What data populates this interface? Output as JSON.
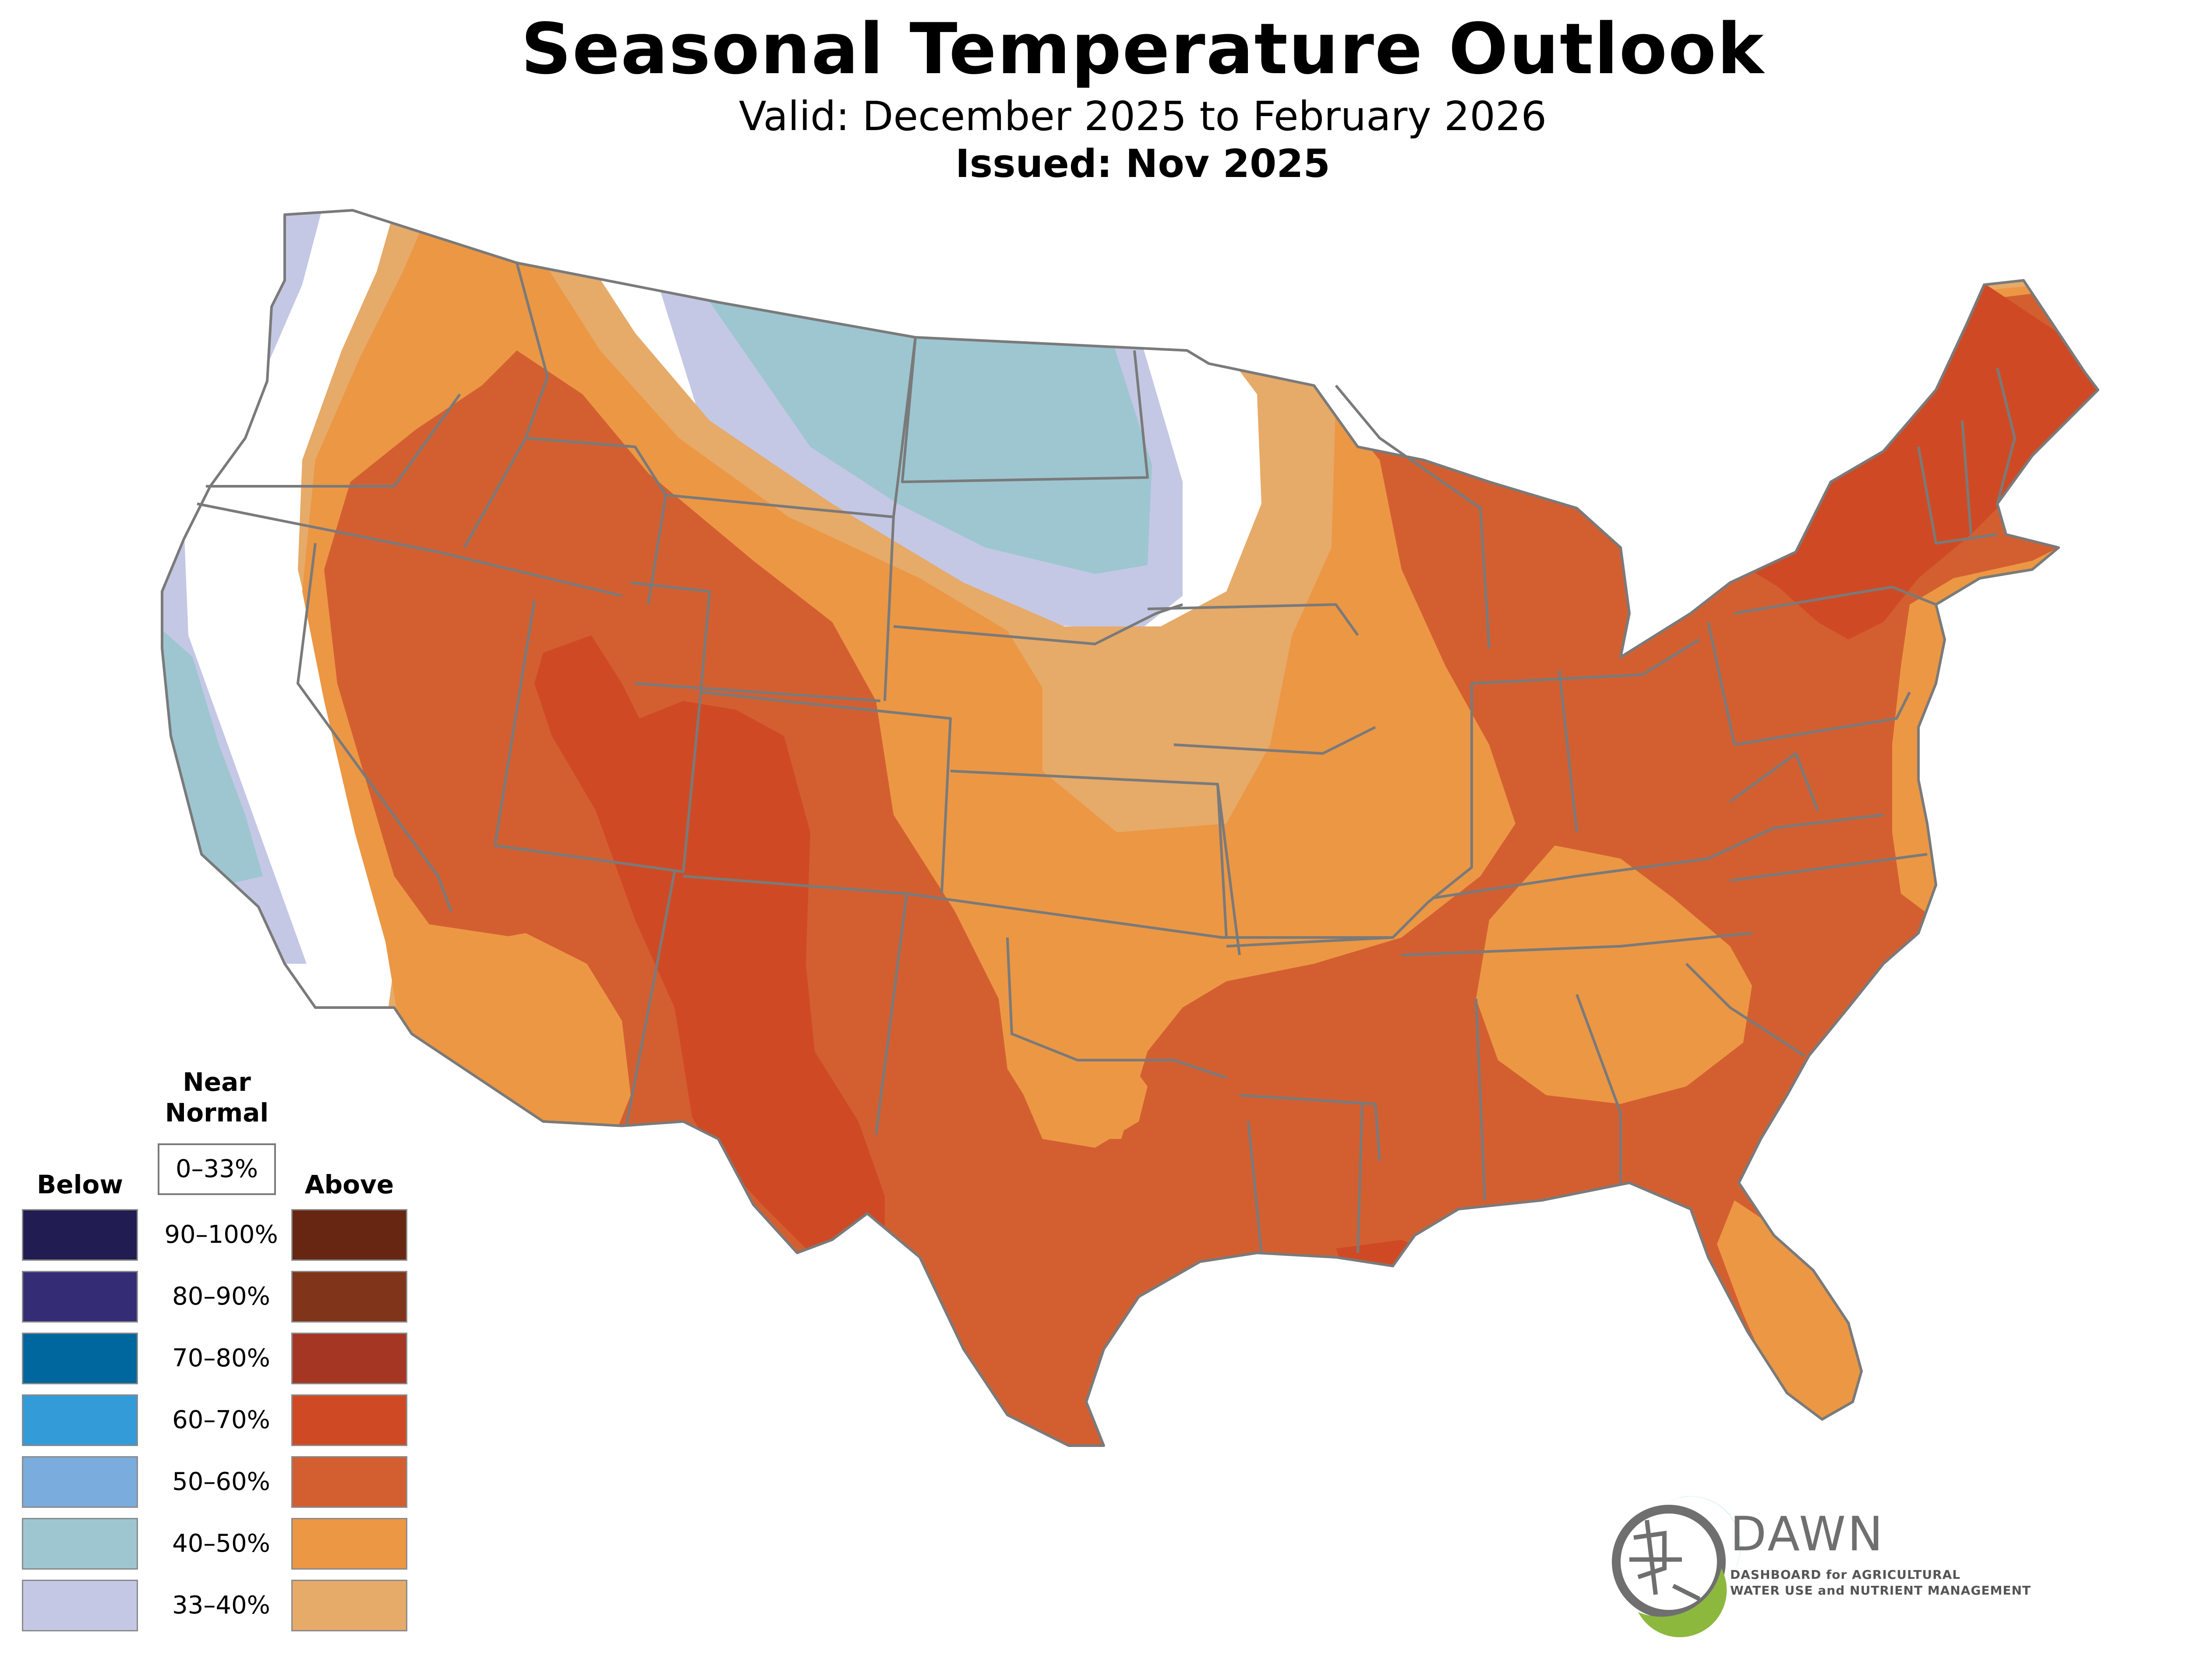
{
  "header": {
    "title": "Seasonal Temperature Outlook",
    "valid": "Valid: December 2025 to February 2026",
    "issued": "Issued: Nov 2025"
  },
  "legend": {
    "below_label": "Below",
    "near_normal_label_1": "Near",
    "near_normal_label_2": "Normal",
    "above_label": "Above",
    "near_normal_range": "0–33%",
    "rows": [
      {
        "range": "90–100%",
        "below_color": "#211c52",
        "above_color": "#662611"
      },
      {
        "range": "80–90%",
        "below_color": "#342d75",
        "above_color": "#80341a"
      },
      {
        "range": "70–80%",
        "below_color": "#00669e",
        "above_color": "#a53624"
      },
      {
        "range": "60–70%",
        "below_color": "#339bd7",
        "above_color": "#cf4a24"
      },
      {
        "range": "50–60%",
        "below_color": "#7aacdd",
        "above_color": "#d35f31"
      },
      {
        "range": "40–50%",
        "below_color": "#9dc6d1",
        "above_color": "#ec9744"
      },
      {
        "range": "33–40%",
        "below_color": "#c4c8e5",
        "above_color": "#e6aa69"
      }
    ]
  },
  "map": {
    "below_33_40": "#c4c8e5",
    "below_40_50": "#9dc6d1",
    "above_33_40": "#e6aa69",
    "above_40_50": "#ec9744",
    "above_50_60": "#d35f31",
    "above_60_70": "#cf4a24",
    "border_color": "#7a7a7a"
  },
  "logo": {
    "name": "DAWN",
    "line1": "DASHBOARD for AGRICULTURAL",
    "line2": "WATER USE and NUTRIENT MANAGEMENT",
    "blue": "#22a9d8",
    "green": "#8cb83e",
    "gray": "#6f6f70"
  }
}
